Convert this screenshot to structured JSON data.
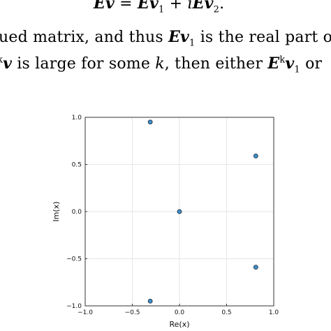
{
  "text": {
    "line1": {
      "lhs_E": "E",
      "lhs_v": "v",
      "eq": " = ",
      "rhs_E1": "E",
      "rhs_v1": "v",
      "rhs_sub1": "1",
      "plus_i": " + i",
      "rhs_E2": "E",
      "rhs_v2": "v",
      "rhs_sub2": "2",
      "end": "."
    },
    "line2": {
      "pre": "ued matrix, and thus ",
      "E": "E",
      "v": "v",
      "sub": "1",
      "post": " is the real part o"
    },
    "line3": {
      "sup": "k",
      "v": "v",
      "mid": " is large for some ",
      "k": "k",
      "mid2": ", then either ",
      "E": "E",
      "sup2": "k",
      "v2": "v",
      "sub2": "1",
      "post": " or "
    }
  },
  "chart_data": {
    "type": "scatter",
    "title": "",
    "xlabel": "Re(x)",
    "ylabel": "Im(x)",
    "xlim": [
      -1.0,
      1.0
    ],
    "ylim": [
      -1.0,
      1.0
    ],
    "x_ticks": [
      -1.0,
      -0.5,
      0.0,
      0.5,
      1.0
    ],
    "y_ticks": [
      -1.0,
      -0.5,
      0.0,
      0.5,
      1.0
    ],
    "x_tick_labels": [
      "−1.0",
      "−0.5",
      "0.0",
      "0.5",
      "1.0"
    ],
    "y_tick_labels": [
      "−1.0",
      "−0.5",
      "0.0",
      "0.5",
      "1.0"
    ],
    "grid": true,
    "legend": "none",
    "marker_color": "#3a8fd0",
    "points": [
      {
        "x": -0.31,
        "y": 0.95
      },
      {
        "x": 0.81,
        "y": 0.59
      },
      {
        "x": 0.0,
        "y": 0.0
      },
      {
        "x": 0.81,
        "y": -0.59
      },
      {
        "x": -0.31,
        "y": -0.95
      }
    ]
  }
}
